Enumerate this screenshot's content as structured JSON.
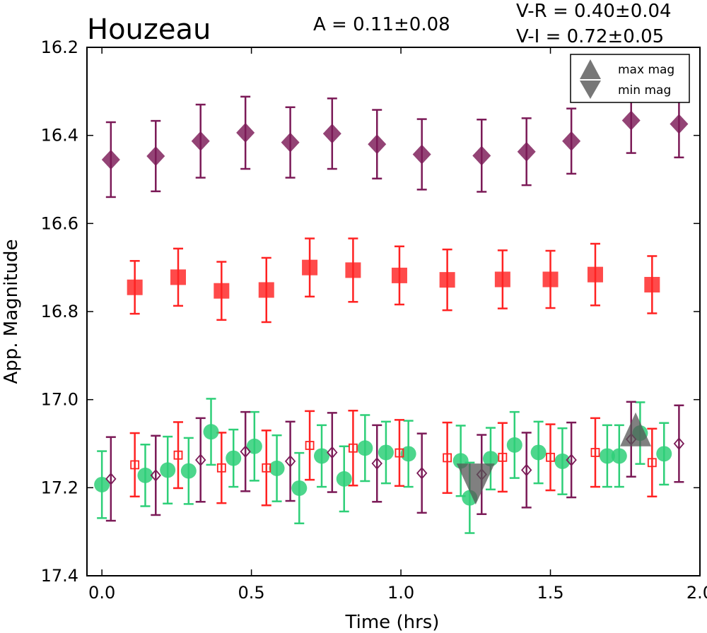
{
  "chart_data": {
    "type": "scatter",
    "title": "Houzeau",
    "annotations": {
      "amplitude": "A  = 0.11±0.08",
      "v_r": "V-R = 0.40±0.04",
      "v_i": "V-I  = 0.72±0.05"
    },
    "xlabel": "Time (hrs)",
    "ylabel": "App. Magnitude",
    "xlim": [
      -0.05,
      2.0
    ],
    "ylim": [
      16.2,
      17.4
    ],
    "y_inverted": true,
    "xticks": [
      "0.0",
      "0.5",
      "1.0",
      "1.5",
      "2.0"
    ],
    "yticks": [
      "16.2",
      "16.4",
      "16.6",
      "16.8",
      "17.0",
      "17.2",
      "17.4"
    ],
    "legend": {
      "placement": "top-right",
      "entries": [
        "max mag",
        "min mag"
      ]
    },
    "colors": {
      "I": "#7b1a57",
      "R": "#ff2222",
      "V": "#2ecf78",
      "marker_gray": "#666666"
    },
    "series": [
      {
        "marker": "filled-diamond",
        "color": "#7b1a57",
        "points": [
          {
            "x": 0.03,
            "y": 16.455,
            "err": 0.085
          },
          {
            "x": 0.18,
            "y": 16.447,
            "err": 0.08
          },
          {
            "x": 0.33,
            "y": 16.413,
            "err": 0.083
          },
          {
            "x": 0.48,
            "y": 16.394,
            "err": 0.082
          },
          {
            "x": 0.63,
            "y": 16.416,
            "err": 0.08
          },
          {
            "x": 0.77,
            "y": 16.396,
            "err": 0.08
          },
          {
            "x": 0.92,
            "y": 16.42,
            "err": 0.078
          },
          {
            "x": 1.07,
            "y": 16.443,
            "err": 0.08
          },
          {
            "x": 1.27,
            "y": 16.446,
            "err": 0.082
          },
          {
            "x": 1.42,
            "y": 16.437,
            "err": 0.076
          },
          {
            "x": 1.57,
            "y": 16.413,
            "err": 0.074
          },
          {
            "x": 1.77,
            "y": 16.366,
            "err": 0.074
          },
          {
            "x": 1.93,
            "y": 16.374,
            "err": 0.076
          }
        ]
      },
      {
        "marker": "filled-square",
        "color": "#ff2222",
        "points": [
          {
            "x": 0.11,
            "y": 16.745,
            "err": 0.06
          },
          {
            "x": 0.255,
            "y": 16.722,
            "err": 0.065
          },
          {
            "x": 0.4,
            "y": 16.753,
            "err": 0.066
          },
          {
            "x": 0.55,
            "y": 16.751,
            "err": 0.073
          },
          {
            "x": 0.695,
            "y": 16.7,
            "err": 0.066
          },
          {
            "x": 0.84,
            "y": 16.706,
            "err": 0.072
          },
          {
            "x": 0.995,
            "y": 16.718,
            "err": 0.066
          },
          {
            "x": 1.155,
            "y": 16.728,
            "err": 0.069
          },
          {
            "x": 1.34,
            "y": 16.727,
            "err": 0.066
          },
          {
            "x": 1.5,
            "y": 16.727,
            "err": 0.065
          },
          {
            "x": 1.65,
            "y": 16.716,
            "err": 0.07
          },
          {
            "x": 1.84,
            "y": 16.739,
            "err": 0.065
          }
        ]
      },
      {
        "marker": "filled-circle",
        "color": "#2ecf78",
        "points": [
          {
            "x": 0.0,
            "y": 17.193,
            "err": 0.076
          },
          {
            "x": 0.145,
            "y": 17.172,
            "err": 0.07
          },
          {
            "x": 0.22,
            "y": 17.16,
            "err": 0.076
          },
          {
            "x": 0.29,
            "y": 17.162,
            "err": 0.075
          },
          {
            "x": 0.365,
            "y": 17.073,
            "err": 0.075
          },
          {
            "x": 0.44,
            "y": 17.133,
            "err": 0.065
          },
          {
            "x": 0.51,
            "y": 17.106,
            "err": 0.078
          },
          {
            "x": 0.585,
            "y": 17.156,
            "err": 0.075
          },
          {
            "x": 0.66,
            "y": 17.201,
            "err": 0.08
          },
          {
            "x": 0.735,
            "y": 17.128,
            "err": 0.07
          },
          {
            "x": 0.81,
            "y": 17.18,
            "err": 0.074
          },
          {
            "x": 0.88,
            "y": 17.11,
            "err": 0.075
          },
          {
            "x": 0.95,
            "y": 17.12,
            "err": 0.07
          },
          {
            "x": 1.025,
            "y": 17.123,
            "err": 0.075
          },
          {
            "x": 1.2,
            "y": 17.139,
            "err": 0.08
          },
          {
            "x": 1.23,
            "y": 17.223,
            "err": 0.08
          },
          {
            "x": 1.3,
            "y": 17.134,
            "err": 0.07
          },
          {
            "x": 1.38,
            "y": 17.103,
            "err": 0.075
          },
          {
            "x": 1.46,
            "y": 17.12,
            "err": 0.07
          },
          {
            "x": 1.54,
            "y": 17.14,
            "err": 0.075
          },
          {
            "x": 1.69,
            "y": 17.128,
            "err": 0.07
          },
          {
            "x": 1.73,
            "y": 17.128,
            "err": 0.07
          },
          {
            "x": 1.8,
            "y": 17.076,
            "err": 0.07
          },
          {
            "x": 1.88,
            "y": 17.123,
            "err": 0.07
          }
        ]
      },
      {
        "marker": "open-square",
        "color": "#ff2222",
        "points": [
          {
            "x": 0.11,
            "y": 17.148,
            "err": 0.072
          },
          {
            "x": 0.255,
            "y": 17.126,
            "err": 0.075
          },
          {
            "x": 0.4,
            "y": 17.155,
            "err": 0.08
          },
          {
            "x": 0.55,
            "y": 17.155,
            "err": 0.085
          },
          {
            "x": 0.695,
            "y": 17.104,
            "err": 0.078
          },
          {
            "x": 0.84,
            "y": 17.11,
            "err": 0.085
          },
          {
            "x": 0.995,
            "y": 17.121,
            "err": 0.075
          },
          {
            "x": 1.155,
            "y": 17.132,
            "err": 0.08
          },
          {
            "x": 1.34,
            "y": 17.131,
            "err": 0.078
          },
          {
            "x": 1.5,
            "y": 17.131,
            "err": 0.075
          },
          {
            "x": 1.65,
            "y": 17.12,
            "err": 0.078
          },
          {
            "x": 1.84,
            "y": 17.143,
            "err": 0.077
          }
        ]
      },
      {
        "marker": "open-diamond",
        "color": "#7b1a57",
        "points": [
          {
            "x": 0.03,
            "y": 17.18,
            "err": 0.095
          },
          {
            "x": 0.18,
            "y": 17.172,
            "err": 0.09
          },
          {
            "x": 0.33,
            "y": 17.137,
            "err": 0.095
          },
          {
            "x": 0.48,
            "y": 17.118,
            "err": 0.09
          },
          {
            "x": 0.63,
            "y": 17.14,
            "err": 0.09
          },
          {
            "x": 0.77,
            "y": 17.12,
            "err": 0.09
          },
          {
            "x": 0.92,
            "y": 17.145,
            "err": 0.087
          },
          {
            "x": 1.07,
            "y": 17.167,
            "err": 0.09
          },
          {
            "x": 1.27,
            "y": 17.17,
            "err": 0.09
          },
          {
            "x": 1.42,
            "y": 17.16,
            "err": 0.085
          },
          {
            "x": 1.57,
            "y": 17.137,
            "err": 0.085
          },
          {
            "x": 1.77,
            "y": 17.09,
            "err": 0.085
          },
          {
            "x": 1.93,
            "y": 17.1,
            "err": 0.087
          }
        ]
      }
    ],
    "extrema": [
      {
        "kind": "max mag",
        "x": 1.785,
        "y": 17.09
      },
      {
        "kind": "min mag",
        "x": 1.25,
        "y": 17.19
      }
    ]
  }
}
